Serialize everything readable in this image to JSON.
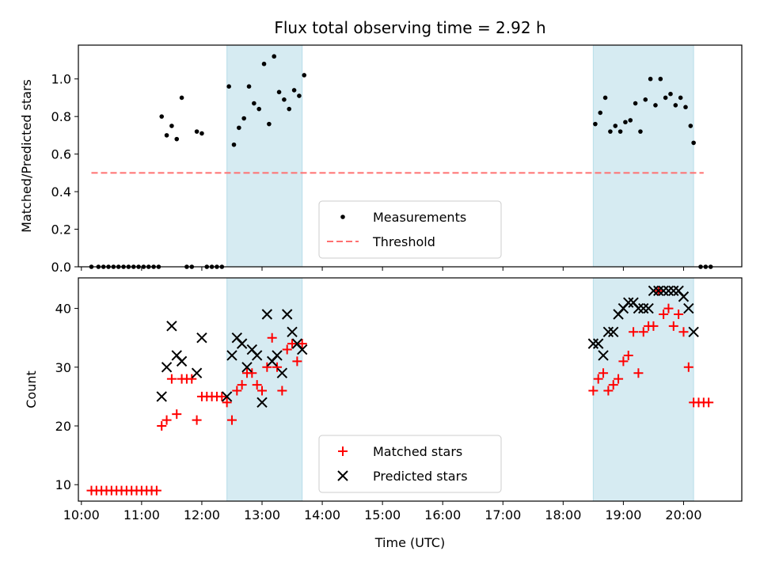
{
  "title": "Flux total observing time = 2.92 h",
  "chart_data": [
    {
      "type": "scatter",
      "ylabel": "Matched/Predicted stars",
      "xlim": [
        "09:57",
        "20:58"
      ],
      "ylim": [
        0.0,
        1.18
      ],
      "yticks": [
        "0.0",
        "0.2",
        "0.4",
        "0.6",
        "0.8",
        "1.0"
      ],
      "shaded_intervals": [
        [
          "12:25",
          "13:40"
        ],
        [
          "18:30",
          "20:10"
        ]
      ],
      "legend": {
        "position": "lower-center",
        "entries": [
          "Measurements",
          "Threshold"
        ]
      },
      "series": [
        {
          "name": "Measurements",
          "marker": "dot",
          "color": "#000000",
          "points": [
            [
              "10:10",
              0.0
            ],
            [
              "10:17",
              0.0
            ],
            [
              "10:22",
              0.0
            ],
            [
              "10:27",
              0.0
            ],
            [
              "10:32",
              0.0
            ],
            [
              "10:37",
              0.0
            ],
            [
              "10:42",
              0.0
            ],
            [
              "10:47",
              0.0
            ],
            [
              "10:52",
              0.0
            ],
            [
              "10:57",
              0.0
            ],
            [
              "11:02",
              0.0
            ],
            [
              "11:07",
              0.0
            ],
            [
              "11:12",
              0.0
            ],
            [
              "11:17",
              0.0
            ],
            [
              "11:20",
              0.8
            ],
            [
              "11:25",
              0.7
            ],
            [
              "11:30",
              0.75
            ],
            [
              "11:35",
              0.68
            ],
            [
              "11:40",
              0.9
            ],
            [
              "11:45",
              0.0
            ],
            [
              "11:50",
              0.0
            ],
            [
              "11:55",
              0.72
            ],
            [
              "12:00",
              0.71
            ],
            [
              "12:05",
              0.0
            ],
            [
              "12:10",
              0.0
            ],
            [
              "12:15",
              0.0
            ],
            [
              "12:20",
              0.0
            ],
            [
              "12:27",
              0.96
            ],
            [
              "12:32",
              0.65
            ],
            [
              "12:37",
              0.74
            ],
            [
              "12:42",
              0.79
            ],
            [
              "12:47",
              0.96
            ],
            [
              "12:52",
              0.87
            ],
            [
              "12:57",
              0.84
            ],
            [
              "13:02",
              1.08
            ],
            [
              "13:07",
              0.76
            ],
            [
              "13:12",
              1.12
            ],
            [
              "13:17",
              0.93
            ],
            [
              "13:22",
              0.89
            ],
            [
              "13:27",
              0.84
            ],
            [
              "13:32",
              0.94
            ],
            [
              "13:37",
              0.91
            ],
            [
              "13:42",
              1.02
            ],
            [
              "18:32",
              0.76
            ],
            [
              "18:37",
              0.82
            ],
            [
              "18:42",
              0.9
            ],
            [
              "18:47",
              0.72
            ],
            [
              "18:52",
              0.75
            ],
            [
              "18:57",
              0.72
            ],
            [
              "19:02",
              0.77
            ],
            [
              "19:07",
              0.78
            ],
            [
              "19:12",
              0.87
            ],
            [
              "19:17",
              0.72
            ],
            [
              "19:22",
              0.89
            ],
            [
              "19:27",
              1.0
            ],
            [
              "19:32",
              0.86
            ],
            [
              "19:37",
              1.0
            ],
            [
              "19:42",
              0.9
            ],
            [
              "19:47",
              0.92
            ],
            [
              "19:52",
              0.86
            ],
            [
              "19:57",
              0.9
            ],
            [
              "20:02",
              0.85
            ],
            [
              "20:07",
              0.75
            ],
            [
              "20:10",
              0.66
            ],
            [
              "20:17",
              0.0
            ],
            [
              "20:22",
              0.0
            ],
            [
              "20:27",
              0.0
            ]
          ]
        },
        {
          "name": "Threshold",
          "style": "dashed-line",
          "color": "#ff7070",
          "x_range": [
            "10:10",
            "20:20"
          ],
          "y": 0.5
        }
      ]
    },
    {
      "type": "scatter",
      "xlabel": "Time (UTC)",
      "ylabel": "Count",
      "xlim": [
        "09:57",
        "20:58"
      ],
      "ylim": [
        7.2,
        45.2
      ],
      "yticks": [
        "10",
        "20",
        "30",
        "40"
      ],
      "xticks": [
        "10:00",
        "11:00",
        "12:00",
        "13:00",
        "14:00",
        "15:00",
        "16:00",
        "17:00",
        "18:00",
        "19:00",
        "20:00"
      ],
      "shaded_intervals": [
        [
          "12:25",
          "13:40"
        ],
        [
          "18:30",
          "20:10"
        ]
      ],
      "legend": {
        "position": "lower-center",
        "entries": [
          "Matched stars",
          "Predicted stars"
        ]
      },
      "series": [
        {
          "name": "Matched stars",
          "marker": "plus",
          "color": "#ff0000",
          "points": [
            [
              "10:10",
              9
            ],
            [
              "10:15",
              9
            ],
            [
              "10:20",
              9
            ],
            [
              "10:25",
              9
            ],
            [
              "10:30",
              9
            ],
            [
              "10:35",
              9
            ],
            [
              "10:40",
              9
            ],
            [
              "10:45",
              9
            ],
            [
              "10:50",
              9
            ],
            [
              "10:55",
              9
            ],
            [
              "11:00",
              9
            ],
            [
              "11:05",
              9
            ],
            [
              "11:10",
              9
            ],
            [
              "11:15",
              9
            ],
            [
              "11:20",
              20
            ],
            [
              "11:25",
              21
            ],
            [
              "11:30",
              28
            ],
            [
              "11:35",
              22
            ],
            [
              "11:40",
              28
            ],
            [
              "11:45",
              28
            ],
            [
              "11:50",
              28
            ],
            [
              "11:55",
              21
            ],
            [
              "12:00",
              25
            ],
            [
              "12:05",
              25
            ],
            [
              "12:10",
              25
            ],
            [
              "12:15",
              25
            ],
            [
              "12:20",
              25
            ],
            [
              "12:25",
              24
            ],
            [
              "12:30",
              21
            ],
            [
              "12:35",
              26
            ],
            [
              "12:40",
              27
            ],
            [
              "12:45",
              29
            ],
            [
              "12:50",
              29
            ],
            [
              "12:55",
              27
            ],
            [
              "13:00",
              26
            ],
            [
              "13:05",
              30
            ],
            [
              "13:10",
              35
            ],
            [
              "13:15",
              30
            ],
            [
              "13:20",
              26
            ],
            [
              "13:25",
              33
            ],
            [
              "13:30",
              34
            ],
            [
              "13:35",
              31
            ],
            [
              "13:40",
              34
            ],
            [
              "18:30",
              26
            ],
            [
              "18:35",
              28
            ],
            [
              "18:40",
              29
            ],
            [
              "18:45",
              26
            ],
            [
              "18:50",
              27
            ],
            [
              "18:55",
              28
            ],
            [
              "19:00",
              31
            ],
            [
              "19:05",
              32
            ],
            [
              "19:10",
              36
            ],
            [
              "19:15",
              29
            ],
            [
              "19:20",
              36
            ],
            [
              "19:25",
              37
            ],
            [
              "19:30",
              37
            ],
            [
              "19:35",
              43
            ],
            [
              "19:40",
              39
            ],
            [
              "19:45",
              40
            ],
            [
              "19:50",
              37
            ],
            [
              "19:55",
              39
            ],
            [
              "20:00",
              36
            ],
            [
              "20:05",
              30
            ],
            [
              "20:10",
              24
            ],
            [
              "20:15",
              24
            ],
            [
              "20:20",
              24
            ],
            [
              "20:25",
              24
            ]
          ]
        },
        {
          "name": "Predicted stars",
          "marker": "x",
          "color": "#000000",
          "points": [
            [
              "11:20",
              25
            ],
            [
              "11:25",
              30
            ],
            [
              "11:30",
              37
            ],
            [
              "11:35",
              32
            ],
            [
              "11:40",
              31
            ],
            [
              "11:55",
              29
            ],
            [
              "12:00",
              35
            ],
            [
              "12:25",
              25
            ],
            [
              "12:30",
              32
            ],
            [
              "12:35",
              35
            ],
            [
              "12:40",
              34
            ],
            [
              "12:45",
              30
            ],
            [
              "12:50",
              33
            ],
            [
              "12:55",
              32
            ],
            [
              "13:00",
              24
            ],
            [
              "13:05",
              39
            ],
            [
              "13:10",
              31
            ],
            [
              "13:15",
              32
            ],
            [
              "13:20",
              29
            ],
            [
              "13:25",
              39
            ],
            [
              "13:30",
              36
            ],
            [
              "13:35",
              34
            ],
            [
              "13:40",
              33
            ],
            [
              "18:30",
              34
            ],
            [
              "18:35",
              34
            ],
            [
              "18:40",
              32
            ],
            [
              "18:45",
              36
            ],
            [
              "18:50",
              36
            ],
            [
              "18:55",
              39
            ],
            [
              "19:00",
              40
            ],
            [
              "19:05",
              41
            ],
            [
              "19:10",
              41
            ],
            [
              "19:15",
              40
            ],
            [
              "19:20",
              40
            ],
            [
              "19:25",
              40
            ],
            [
              "19:30",
              43
            ],
            [
              "19:35",
              43
            ],
            [
              "19:40",
              43
            ],
            [
              "19:45",
              43
            ],
            [
              "19:50",
              43
            ],
            [
              "19:55",
              43
            ],
            [
              "20:00",
              42
            ],
            [
              "20:05",
              40
            ],
            [
              "20:10",
              36
            ]
          ]
        }
      ]
    }
  ]
}
